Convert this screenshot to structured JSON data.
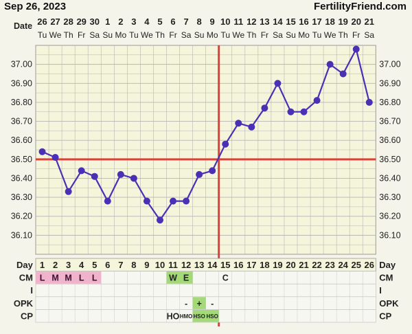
{
  "header": {
    "date": "Sep 26, 2023",
    "site": "FertilityFriend.com"
  },
  "colors": {
    "background": "#f4f4ea",
    "plot_background": "#f5f5dc",
    "grid": "#b5b5b5",
    "line": "#4b2fb4",
    "coverline": "#d9413b",
    "pink": "#f1b3cc",
    "green": "#a3d977"
  },
  "chart_data": {
    "type": "line",
    "title": "",
    "xlabel": "Date",
    "ylabel": "",
    "ylim": [
      36.0,
      37.1
    ],
    "y_ticks": [
      "36.10",
      "36.20",
      "36.30",
      "36.40",
      "36.50",
      "36.60",
      "36.70",
      "36.80",
      "36.90",
      "37.00"
    ],
    "grid": true,
    "date_label": "Date",
    "dates": [
      "26",
      "27",
      "28",
      "29",
      "30",
      "1",
      "2",
      "3",
      "4",
      "5",
      "6",
      "7",
      "8",
      "9",
      "10",
      "11",
      "12",
      "13",
      "14",
      "15",
      "16",
      "17",
      "18",
      "19",
      "20",
      "21"
    ],
    "weekdays": [
      "Tu",
      "We",
      "Th",
      "Fr",
      "Sa",
      "Su",
      "Mo",
      "Tu",
      "We",
      "Th",
      "Fr",
      "Sa",
      "Su",
      "Mo",
      "Tu",
      "We",
      "Th",
      "Fr",
      "Sa",
      "Su",
      "Mo",
      "Tu",
      "We",
      "Th",
      "Fr",
      "Sa"
    ],
    "series": [
      {
        "values": [
          36.54,
          36.51,
          36.33,
          36.44,
          36.41,
          36.28,
          36.42,
          36.4,
          36.28,
          36.18,
          36.28,
          36.28,
          36.42,
          36.44,
          36.58,
          36.69,
          36.67,
          36.77,
          36.9,
          36.75,
          36.75,
          36.81,
          37.0,
          36.95,
          37.08,
          36.8
        ]
      }
    ],
    "coverline": 36.5,
    "ovulation_day": 14,
    "day_label": "Day",
    "days": [
      "1",
      "2",
      "3",
      "4",
      "5",
      "6",
      "7",
      "8",
      "9",
      "10",
      "11",
      "12",
      "13",
      "14",
      "15",
      "16",
      "17",
      "18",
      "19",
      "20",
      "21",
      "22",
      "23",
      "24",
      "25",
      "26"
    ],
    "rows": [
      {
        "label": "CM",
        "cells": [
          {
            "day": 1,
            "text": "L",
            "bg": "pink"
          },
          {
            "day": 2,
            "text": "M",
            "bg": "pink"
          },
          {
            "day": 3,
            "text": "M",
            "bg": "pink"
          },
          {
            "day": 4,
            "text": "L",
            "bg": "pink"
          },
          {
            "day": 5,
            "text": "L",
            "bg": "pink"
          },
          {
            "day": 11,
            "text": "W",
            "bg": "green"
          },
          {
            "day": 12,
            "text": "E",
            "bg": "green"
          },
          {
            "day": 15,
            "text": "C",
            "bg": ""
          }
        ]
      },
      {
        "label": "I",
        "cells": []
      },
      {
        "label": "OPK",
        "cells": [
          {
            "day": 12,
            "text": "-",
            "bg": ""
          },
          {
            "day": 13,
            "text": "+",
            "bg": "green"
          },
          {
            "day": 14,
            "text": "-",
            "bg": ""
          }
        ]
      },
      {
        "label": "CP",
        "cells": [
          {
            "day": 11,
            "text": "HO",
            "bg": ""
          },
          {
            "day": 12,
            "text": "HMO",
            "bg": ""
          },
          {
            "day": 13,
            "text": "HSO",
            "bg": "green"
          },
          {
            "day": 14,
            "text": "HSO",
            "bg": "green"
          }
        ]
      }
    ]
  }
}
